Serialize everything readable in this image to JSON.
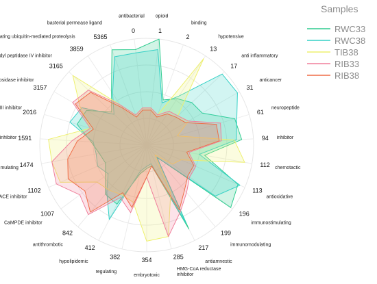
{
  "chart_data": {
    "type": "radar",
    "legend": {
      "title": "Samples",
      "placement": "top-right"
    },
    "categories": [
      "opioid",
      "binding",
      "hypotensive",
      "anti inflammatory",
      "anticancer",
      "neuropeptide",
      "inhibitor",
      "chemotactic",
      "antioxidative",
      "immunostimulating",
      "immunomodulating",
      "antiamnestic",
      "HMG-CoA reductase inhibitor",
      "embryotoxic",
      "regulating",
      "hypolipidemic",
      "antithrombotic",
      "CaMPDE inhibitor",
      "ACE inhibitor",
      "stimulating",
      "renin inhibitor",
      "dipeptidyl peptidase III inhibitor",
      "alpha-glucosidase inhibitor",
      "dipeptidyl peptidase IV inhibitor",
      "activating ubiquitin-mediated proteolysis",
      "bacterial permease ligand",
      "antibacterial"
    ],
    "category_labels": [
      "opioid",
      "binding",
      "hypotensive",
      "anti inflammatory",
      "anticancer",
      "neuropeptide",
      "inhibitor",
      "chemotactic",
      "antioxidative",
      "immunostimulating",
      "immunomodulating",
      "antiamnestic",
      "HMG-CoA reductase\ninhibitor",
      "embryotoxic",
      "regulating",
      "hypolipidemic",
      "antithrombotic",
      "CaMPDE inhibitor",
      "ACE inhibitor",
      "stimulating",
      "renin inhibitor",
      "dipeptidyl peptidase III inhibitor",
      "alpha-glucosidase inhibitor",
      "dipeptidyl peptidase IV inhibitor",
      "activating ubiquitin-mediated proteolysis",
      "bacterial permease ligand",
      "antibacterial"
    ],
    "value_labels": [
      "1",
      "2",
      "13",
      "17",
      "31",
      "61",
      "94",
      "112",
      "113",
      "196",
      "199",
      "217",
      "285",
      "354",
      "382",
      "412",
      "842",
      "1007",
      "1102",
      "1474",
      "1591",
      "2016",
      "3157",
      "3165",
      "3859",
      "5365",
      "0"
    ],
    "rmax": 1,
    "grid": true,
    "series": [
      {
        "name": "RWC33",
        "color": "#2ecc8f",
        "values": [
          1.0,
          0.45,
          0.52,
          0.58,
          0.6,
          0.86,
          0.89,
          0.55,
          0.93,
          0.98,
          0.15,
          0.88,
          0.2,
          0.22,
          0.28,
          0.62,
          0.6,
          0.48,
          0.42,
          0.45,
          0.52,
          0.68,
          0.65,
          0.45,
          0.6,
          0.95,
          0.9
        ]
      },
      {
        "name": "RWC38",
        "color": "#34d1c6",
        "values": [
          0.9,
          0.42,
          0.55,
          0.97,
          0.98,
          0.88,
          0.84,
          0.5,
          0.95,
          0.8,
          0.15,
          0.82,
          0.18,
          0.2,
          0.25,
          0.78,
          0.58,
          0.45,
          0.5,
          0.48,
          0.5,
          0.75,
          0.7,
          0.42,
          0.58,
          0.88,
          0.87
        ]
      },
      {
        "name": "TIB38",
        "color": "#eef06e",
        "values": [
          0.35,
          0.3,
          0.97,
          0.4,
          0.45,
          0.3,
          0.82,
          0.93,
          0.35,
          0.3,
          0.12,
          0.5,
          0.88,
          0.9,
          0.55,
          0.52,
          0.55,
          0.58,
          0.88,
          0.9,
          0.92,
          0.55,
          0.72,
          0.95,
          0.45,
          0.3,
          0.35
        ]
      },
      {
        "name": "RIB33",
        "color": "#f07f9b",
        "values": [
          0.35,
          0.3,
          0.38,
          0.4,
          0.45,
          0.72,
          0.7,
          0.4,
          0.5,
          0.5,
          0.58,
          0.7,
          0.88,
          0.3,
          0.65,
          0.55,
          0.85,
          0.78,
          0.92,
          0.9,
          0.7,
          0.55,
          0.8,
          0.75,
          0.45,
          0.3,
          0.35
        ]
      },
      {
        "name": "RIB38",
        "color": "#ef6c46",
        "values": [
          0.33,
          0.28,
          0.35,
          0.38,
          0.42,
          0.68,
          0.68,
          0.38,
          0.48,
          0.48,
          0.55,
          0.68,
          0.2,
          0.3,
          0.6,
          0.5,
          0.82,
          0.72,
          0.8,
          0.75,
          0.65,
          0.52,
          0.77,
          0.72,
          0.42,
          0.28,
          0.33
        ]
      }
    ]
  }
}
